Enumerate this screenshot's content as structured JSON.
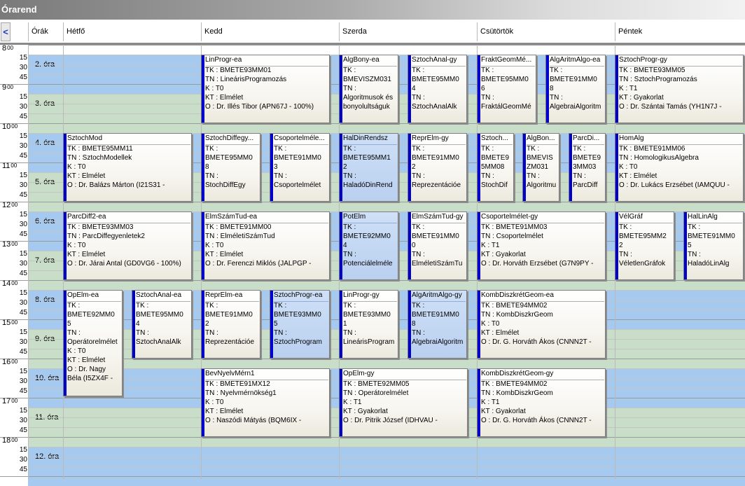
{
  "window_title": "Órarend",
  "nav_prev": "<",
  "headers": [
    "Órák",
    "Hétfő",
    "Kedd",
    "Szerda",
    "Csütörtök",
    "Péntek"
  ],
  "hours": [
    "8",
    "9",
    "10",
    "11",
    "12",
    "13",
    "14",
    "15",
    "16",
    "17",
    "18"
  ],
  "hour_sup": "00",
  "minutes": [
    "15",
    "30",
    "45"
  ],
  "periods": [
    "2. óra",
    "3. óra",
    "4. óra",
    "5. óra",
    "6. óra",
    "7. óra",
    "8. óra",
    "9. óra",
    "10. óra",
    "11. óra",
    "12. óra"
  ],
  "colors": {
    "blue_band": "#a6c9f0",
    "green_band": "#c8dec8",
    "event_bar": "#0000cc",
    "selected": "#b9d0ef"
  },
  "events": [
    {
      "id": "e1",
      "title": "LinProgr-ea",
      "lines": [
        "TK : BMETE93MM01",
        "TN : LineárisProgramozás",
        "K : T0",
        "KT : Elmélet",
        "O : Dr. Illés Tibor (APN67J - 100%)"
      ]
    },
    {
      "id": "e2",
      "title": "AlgBony-ea",
      "lines": [
        "TK :",
        "BMEVISZM031",
        "TN :",
        "Algoritmusok és",
        "bonyolultságuk"
      ]
    },
    {
      "id": "e3",
      "title": "SztochAnal-gy",
      "lines": [
        "TK :",
        "BMETE95MM0",
        "4",
        "TN :",
        "SztochAnalAlk"
      ]
    },
    {
      "id": "e4",
      "title": "FraktGeomMé...",
      "lines": [
        "TK :",
        "BMETE95MM0",
        "6",
        "TN :",
        "FraktálGeomMé"
      ]
    },
    {
      "id": "e5",
      "title": "AlgAritmAlgo-ea",
      "lines": [
        "TK :",
        "BMETE91MM0",
        "8",
        "TN :",
        "AlgebraiAlgoritm"
      ]
    },
    {
      "id": "e6",
      "title": "SztochProgr-gy",
      "lines": [
        "TK : BMETE93MM05",
        "TN : SztochProgramozás",
        "K : T1",
        "KT : Gyakorlat",
        "O : Dr. Szántai Tamás (YH1N7J -"
      ]
    },
    {
      "id": "e7",
      "title": "SztochMod",
      "lines": [
        "TK : BMETE95MM11",
        "TN : SztochModellek",
        "K : T0",
        "KT : Elmélet",
        "O : Dr. Balázs Márton (I21S31 -"
      ]
    },
    {
      "id": "e8",
      "title": "SztochDiffegy...",
      "lines": [
        "TK :",
        "BMETE95MM0",
        "8",
        "TN :",
        "StochDiffEgy"
      ]
    },
    {
      "id": "e9",
      "title": "Csoportelméle...",
      "lines": [
        "TK :",
        "BMETE91MM0",
        "3",
        "TN :",
        "Csoportelmélet"
      ]
    },
    {
      "id": "e10",
      "title": "HalDinRendsz",
      "lines": [
        "TK :",
        "BMETE95MM1",
        "2",
        "TN :",
        "HaladóDinRend"
      ]
    },
    {
      "id": "e11",
      "title": "ReprElm-gy",
      "lines": [
        "TK :",
        "BMETE91MM0",
        "2",
        "TN :",
        "Reprezentációe"
      ]
    },
    {
      "id": "e12",
      "title": "Sztoch...",
      "lines": [
        "TK :",
        "BMETE9",
        "5MM08",
        "TN :",
        "StochDif"
      ]
    },
    {
      "id": "e13",
      "title": "AlgBon...",
      "lines": [
        "TK :",
        "BMEVIS",
        "ZM031",
        "TN :",
        "Algoritmu"
      ]
    },
    {
      "id": "e14",
      "title": "ParcDi...",
      "lines": [
        "TK :",
        "BMETE9",
        "3MM03",
        "TN :",
        "ParcDiff"
      ]
    },
    {
      "id": "e15",
      "title": "HomAlg",
      "lines": [
        "TK : BMETE91MM06",
        "TN : HomologikusAlgebra",
        "K : T0",
        "KT : Elmélet",
        "O : Dr. Lukács Erzsébet (IAMQUU -"
      ]
    },
    {
      "id": "e16",
      "title": "ParcDiff2-ea",
      "lines": [
        "TK : BMETE93MM03",
        "TN : ParcDiffegyenletek2",
        "K : T0",
        "KT : Elmélet",
        "O : Dr. Járai Antal (GD0VG6 - 100%)"
      ]
    },
    {
      "id": "e17",
      "title": "ElmSzámTud-ea",
      "lines": [
        "TK : BMETE91MM00",
        "TN : ElméletiSzámTud",
        "K : T0",
        "KT : Elmélet",
        "O : Dr. Ferenczi Miklós (JALPGP -"
      ]
    },
    {
      "id": "e18",
      "title": "PotElm",
      "lines": [
        "TK :",
        "BMETE92MM0",
        "4",
        "TN :",
        "Potenciálelméle"
      ]
    },
    {
      "id": "e19",
      "title": "ElmSzámTud-gy",
      "lines": [
        "TK :",
        "BMETE91MM0",
        "0",
        "TN :",
        "ElméletiSzámTu"
      ]
    },
    {
      "id": "e20",
      "title": "Csoportelmélet-gy",
      "lines": [
        "TK : BMETE91MM03",
        "TN : Csoportelmélet",
        "K : T1",
        "KT : Gyakorlat",
        "O : Dr. Horváth Erzsébet (G7N9PY -"
      ]
    },
    {
      "id": "e21",
      "title": "VélGráf",
      "lines": [
        "TK :",
        "BMETE95MM2",
        "2",
        "TN :",
        "VéletlenGráfok"
      ]
    },
    {
      "id": "e22",
      "title": "HalLinAlg",
      "lines": [
        "TK :",
        "BMETE91MM0",
        "5",
        "TN :",
        "HaladóLinAlg"
      ]
    },
    {
      "id": "e23",
      "title": "OpElm-ea",
      "lines": [
        "TK :",
        "BMETE92MM0",
        "5",
        "TN :",
        "Operátorelmélet",
        "K : T0",
        "KT : Elmélet",
        "O : Dr. Nagy",
        "Béla (I5ZX4F -"
      ]
    },
    {
      "id": "e24",
      "title": "SztochAnal-ea",
      "lines": [
        "TK :",
        "BMETE95MM0",
        "4",
        "TN :",
        "SztochAnalAlk"
      ]
    },
    {
      "id": "e25",
      "title": "ReprElm-ea",
      "lines": [
        "TK :",
        "BMETE91MM0",
        "2",
        "TN :",
        "Reprezentációe"
      ]
    },
    {
      "id": "e26",
      "title": "SztochProgr-ea",
      "lines": [
        "TK :",
        "BMETE93MM0",
        "5",
        "TN :",
        "SztochProgram"
      ]
    },
    {
      "id": "e27",
      "title": "LinProgr-gy",
      "lines": [
        "TK :",
        "BMETE93MM0",
        "1",
        "TN :",
        "LineárisProgram"
      ]
    },
    {
      "id": "e28",
      "title": "AlgAritmAlgo-gy",
      "lines": [
        "TK :",
        "BMETE91MM0",
        "8",
        "TN :",
        "AlgebraiAlgoritm"
      ]
    },
    {
      "id": "e29",
      "title": "KombDiszkrétGeom-ea",
      "lines": [
        "TK : BMETE94MM02",
        "TN : KombDiszkrGeom",
        "K : T0",
        "KT : Elmélet",
        "O : Dr. G. Horváth Ákos (CNNN2T -"
      ]
    },
    {
      "id": "e30",
      "title": "BevNyelvMérn1",
      "lines": [
        "TK : BMETE91MX12",
        "TN : Nyelvmérnökség1",
        "K : T0",
        "KT : Elmélet",
        "O : Naszódi Mátyás (BQM6IX -"
      ]
    },
    {
      "id": "e31",
      "title": "OpElm-gy",
      "lines": [
        "TK : BMETE92MM05",
        "TN : Operátorelmélet",
        "K : T1",
        "KT : Gyakorlat",
        "O : Dr. Pitrik József (IDHVAU -"
      ]
    },
    {
      "id": "e32",
      "title": "KombDiszkrétGeom-gy",
      "lines": [
        "TK : BMETE94MM02",
        "TN : KombDiszkrGeom",
        "K : T1",
        "KT : Gyakorlat",
        "O : Dr. G. Horváth Ákos (CNNN2T -"
      ]
    }
  ]
}
